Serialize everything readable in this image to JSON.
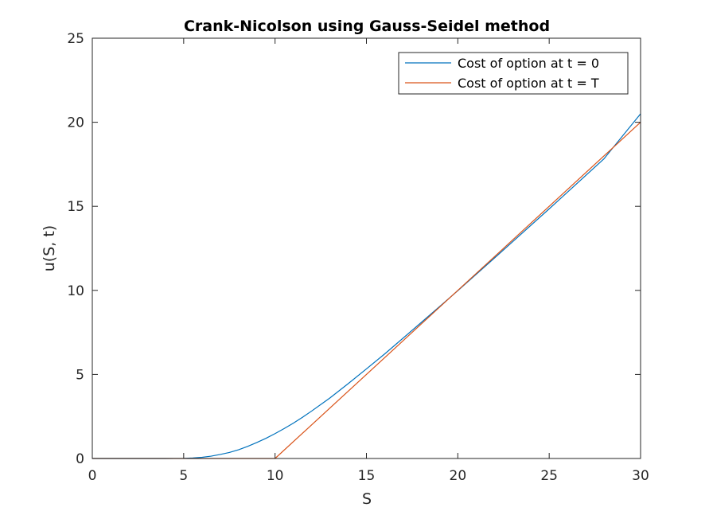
{
  "chart_data": {
    "type": "line",
    "title": "Crank-Nicolson using Gauss-Seidel method",
    "xlabel": "S",
    "ylabel": "u(S, t)",
    "xlim": [
      0,
      30
    ],
    "ylim": [
      0,
      25
    ],
    "xticks": [
      0,
      5,
      10,
      15,
      20,
      25,
      30
    ],
    "yticks": [
      0,
      5,
      10,
      15,
      20,
      25
    ],
    "grid": false,
    "legend_position": "top-right",
    "series": [
      {
        "name": "Cost of option at t = 0",
        "color": "#0072BD",
        "x": [
          0,
          4,
          5,
          5.5,
          6,
          6.5,
          7,
          7.5,
          8,
          8.5,
          9,
          9.5,
          10,
          10.5,
          11,
          11.5,
          12,
          13,
          14,
          15,
          16,
          18,
          20,
          22,
          25,
          28,
          30
        ],
        "y": [
          0,
          0,
          0.01,
          0.03,
          0.07,
          0.14,
          0.24,
          0.36,
          0.52,
          0.72,
          0.95,
          1.2,
          1.48,
          1.78,
          2.1,
          2.45,
          2.82,
          3.6,
          4.45,
          5.33,
          6.22,
          8.09,
          9.98,
          11.92,
          14.85,
          17.83,
          20.5
        ]
      },
      {
        "name": "Cost of option at t = T",
        "color": "#D95319",
        "x": [
          0,
          10,
          30
        ],
        "y": [
          0,
          0,
          20
        ]
      }
    ]
  }
}
